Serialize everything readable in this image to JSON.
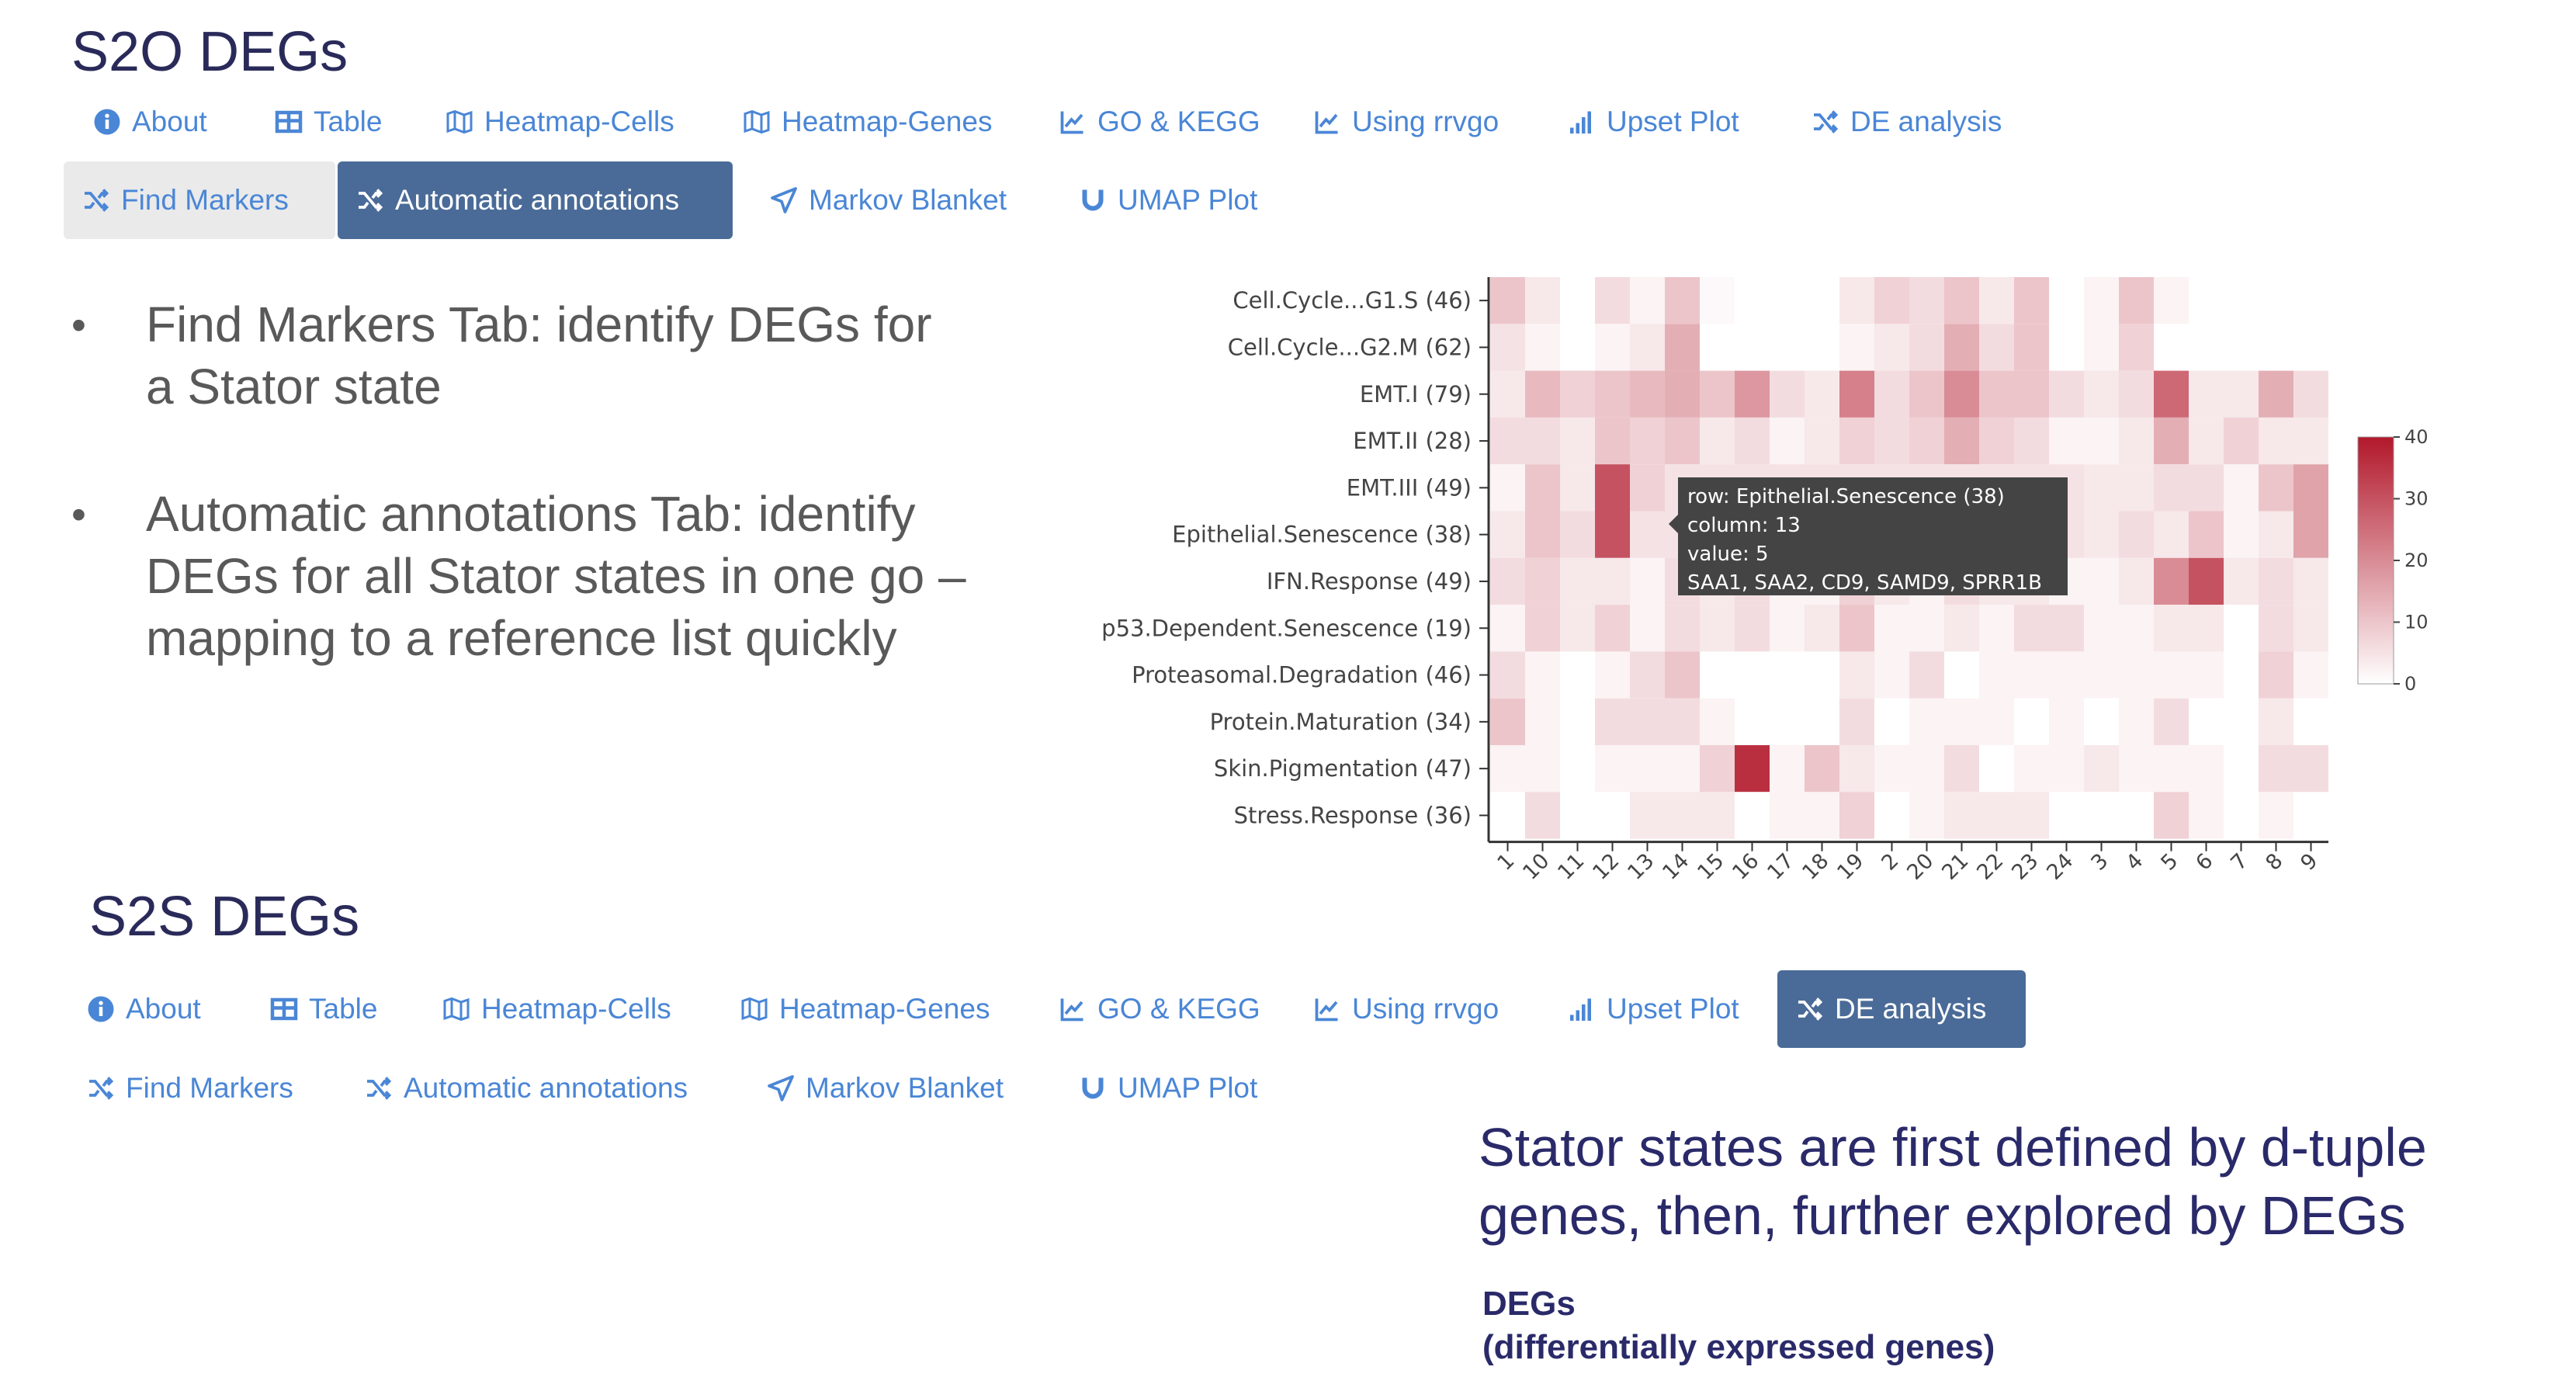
{
  "s2o": {
    "title": "S2O DEGs",
    "tabs_row1": [
      "About",
      "Table",
      "Heatmap-Cells",
      "Heatmap-Genes",
      "GO & KEGG",
      "Using rrvgo",
      "Upset Plot",
      "DE analysis"
    ],
    "tabs_row2": [
      "Find Markers",
      "Automatic annotations",
      "Markov Blanket",
      "UMAP Plot"
    ]
  },
  "bullets": [
    "Find Markers Tab: identify DEGs for a Stator state",
    "Automatic annotations Tab: identify DEGs for all Stator states in one go – mapping to a reference list quickly"
  ],
  "s2s": {
    "title": "S2S DEGs",
    "tabs_row1": [
      "About",
      "Table",
      "Heatmap-Cells",
      "Heatmap-Genes",
      "GO & KEGG",
      "Using rrvgo",
      "Upset Plot",
      "DE analysis"
    ],
    "tabs_row2": [
      "Find Markers",
      "Automatic annotations",
      "Markov Blanket",
      "UMAP Plot"
    ]
  },
  "note": {
    "headline": "Stator states are first defined by d-tuple genes, then, further explored by DEGs",
    "degs_line1": "DEGs",
    "degs_line2": "(differentially expressed genes)"
  },
  "tooltip": {
    "row": "row: Epithelial.Senescence (38)",
    "column": "column: 13",
    "value": "value: 5",
    "genes": "SAA1, SAA2, CD9, SAMD9, SPRR1B"
  },
  "chart_data": {
    "type": "heatmap",
    "rows": [
      "Cell.Cycle...G1.S (46)",
      "Cell.Cycle...G2.M (62)",
      "EMT.I (79)",
      "EMT.II (28)",
      "EMT.III (49)",
      "Epithelial.Senescence (38)",
      "IFN.Response (49)",
      "p53.Dependent.Senescence (19)",
      "Proteasomal.Degradation (46)",
      "Protein.Maturation (34)",
      "Skin.Pigmentation (47)",
      "Stress.Response (36)"
    ],
    "columns": [
      "1",
      "10",
      "11",
      "12",
      "13",
      "14",
      "15",
      "16",
      "17",
      "18",
      "19",
      "2",
      "20",
      "21",
      "22",
      "23",
      "24",
      "3",
      "4",
      "5",
      "6",
      "7",
      "8",
      "9"
    ],
    "values": [
      [
        10,
        4,
        0,
        6,
        2,
        10,
        1,
        0,
        0,
        0,
        4,
        8,
        6,
        10,
        4,
        10,
        0,
        2,
        10,
        2,
        0,
        0,
        0,
        0
      ],
      [
        5,
        2,
        0,
        2,
        4,
        14,
        0,
        0,
        0,
        0,
        2,
        4,
        6,
        14,
        6,
        10,
        0,
        2,
        8,
        0,
        0,
        0,
        0,
        0
      ],
      [
        4,
        12,
        8,
        10,
        12,
        14,
        10,
        18,
        6,
        4,
        22,
        6,
        10,
        20,
        10,
        10,
        6,
        4,
        6,
        26,
        4,
        4,
        14,
        6
      ],
      [
        6,
        6,
        4,
        10,
        8,
        10,
        4,
        6,
        2,
        4,
        8,
        6,
        8,
        14,
        8,
        6,
        2,
        2,
        4,
        14,
        4,
        8,
        4,
        4
      ],
      [
        2,
        10,
        4,
        30,
        8,
        5,
        5,
        5,
        5,
        5,
        5,
        5,
        5,
        5,
        5,
        5,
        5,
        4,
        4,
        6,
        6,
        2,
        10,
        16
      ],
      [
        4,
        10,
        6,
        30,
        5,
        5,
        5,
        5,
        5,
        5,
        5,
        5,
        5,
        5,
        5,
        5,
        5,
        4,
        6,
        4,
        10,
        2,
        4,
        16
      ],
      [
        6,
        8,
        4,
        4,
        2,
        6,
        4,
        6,
        2,
        2,
        8,
        4,
        2,
        6,
        4,
        4,
        2,
        2,
        4,
        20,
        30,
        4,
        6,
        4
      ],
      [
        2,
        8,
        4,
        8,
        2,
        6,
        4,
        6,
        2,
        4,
        10,
        2,
        2,
        4,
        2,
        6,
        6,
        2,
        2,
        4,
        4,
        0,
        6,
        4
      ],
      [
        6,
        2,
        0,
        2,
        6,
        10,
        0,
        0,
        0,
        0,
        4,
        2,
        6,
        0,
        2,
        2,
        2,
        2,
        2,
        2,
        2,
        0,
        8,
        2
      ],
      [
        10,
        2,
        0,
        6,
        6,
        6,
        2,
        0,
        0,
        0,
        6,
        0,
        2,
        2,
        2,
        0,
        2,
        0,
        2,
        6,
        0,
        0,
        4,
        0
      ],
      [
        2,
        2,
        0,
        2,
        2,
        2,
        8,
        36,
        2,
        10,
        4,
        2,
        2,
        6,
        0,
        2,
        2,
        4,
        2,
        2,
        2,
        0,
        6,
        6
      ],
      [
        0,
        6,
        0,
        0,
        4,
        4,
        4,
        0,
        2,
        2,
        8,
        0,
        2,
        4,
        4,
        4,
        0,
        0,
        0,
        8,
        2,
        0,
        2,
        0
      ]
    ],
    "colorbar": {
      "min": 0,
      "max": 40,
      "ticks": [
        0,
        10,
        20,
        30,
        40
      ]
    },
    "colors": {
      "low": "#ffffff",
      "high": "#b2182b"
    }
  },
  "colors": {
    "tab_text": "#4a86d6",
    "tab_active_bg": "#4a6b98",
    "title": "#2a2a5a"
  }
}
